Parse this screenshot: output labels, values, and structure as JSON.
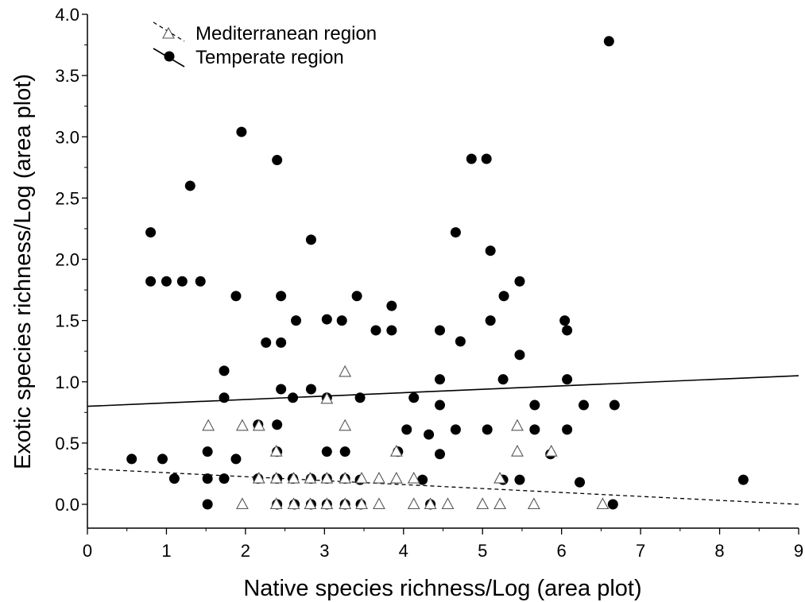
{
  "chart_data": {
    "type": "scatter",
    "title": "",
    "xlabel": "Native species richness/Log (area plot)",
    "ylabel": "Exotic species richness/Log (area plot)",
    "xlim": [
      0,
      9
    ],
    "ylim": [
      -0.2,
      4.0
    ],
    "xticks": [
      "0",
      "1",
      "2",
      "3",
      "4",
      "5",
      "6",
      "7",
      "8",
      "9"
    ],
    "yticks": [
      "0.0",
      "0.5",
      "1.0",
      "1.5",
      "2.0",
      "2.5",
      "3.0",
      "3.5",
      "4.0"
    ],
    "grid": false,
    "legend_position": "top-left",
    "series": [
      {
        "name": "Mediterranean region",
        "marker": "open-triangle",
        "color": "#555555",
        "trend": {
          "style": "dashed",
          "x": [
            0,
            9
          ],
          "y": [
            0.29,
            0.0
          ]
        },
        "points": [
          [
            1.53,
            0.64
          ],
          [
            1.96,
            0.64
          ],
          [
            2.17,
            0.64
          ],
          [
            2.39,
            0.43
          ],
          [
            3.03,
            0.86
          ],
          [
            3.26,
            1.08
          ],
          [
            3.26,
            0.64
          ],
          [
            3.91,
            0.43
          ],
          [
            5.44,
            0.64
          ],
          [
            5.44,
            0.43
          ],
          [
            5.87,
            0.43
          ],
          [
            2.17,
            0.21
          ],
          [
            2.39,
            0.21
          ],
          [
            2.61,
            0.21
          ],
          [
            2.82,
            0.21
          ],
          [
            3.03,
            0.21
          ],
          [
            3.26,
            0.21
          ],
          [
            3.47,
            0.21
          ],
          [
            3.69,
            0.21
          ],
          [
            3.91,
            0.21
          ],
          [
            4.13,
            0.21
          ],
          [
            5.22,
            0.21
          ],
          [
            1.96,
            0.0
          ],
          [
            2.39,
            0.0
          ],
          [
            2.61,
            0.0
          ],
          [
            2.82,
            0.0
          ],
          [
            3.03,
            0.0
          ],
          [
            3.26,
            0.0
          ],
          [
            3.47,
            0.0
          ],
          [
            3.69,
            0.0
          ],
          [
            4.13,
            0.0
          ],
          [
            4.34,
            0.0
          ],
          [
            4.56,
            0.0
          ],
          [
            5.0,
            0.0
          ],
          [
            5.22,
            0.0
          ],
          [
            5.65,
            0.0
          ],
          [
            6.52,
            0.0
          ]
        ]
      },
      {
        "name": "Temperate region",
        "marker": "filled-circle",
        "color": "#000000",
        "trend": {
          "style": "solid",
          "x": [
            0,
            9
          ],
          "y": [
            0.8,
            1.05
          ]
        },
        "points": [
          [
            0.56,
            0.37
          ],
          [
            0.8,
            2.22
          ],
          [
            0.8,
            1.82
          ],
          [
            0.95,
            0.37
          ],
          [
            1.0,
            1.82
          ],
          [
            1.1,
            0.21
          ],
          [
            1.2,
            1.82
          ],
          [
            1.3,
            2.6
          ],
          [
            1.43,
            1.82
          ],
          [
            1.52,
            0.43
          ],
          [
            1.52,
            0.21
          ],
          [
            1.52,
            0.0
          ],
          [
            1.73,
            1.09
          ],
          [
            1.73,
            0.87
          ],
          [
            1.73,
            0.21
          ],
          [
            1.88,
            1.7
          ],
          [
            1.88,
            0.37
          ],
          [
            1.95,
            3.04
          ],
          [
            2.16,
            0.65
          ],
          [
            2.16,
            0.21
          ],
          [
            2.26,
            1.32
          ],
          [
            2.4,
            2.81
          ],
          [
            2.4,
            0.65
          ],
          [
            2.4,
            0.43
          ],
          [
            2.4,
            0.21
          ],
          [
            2.4,
            0.0
          ],
          [
            2.45,
            1.7
          ],
          [
            2.45,
            1.32
          ],
          [
            2.45,
            0.94
          ],
          [
            2.6,
            0.21
          ],
          [
            2.6,
            0.87
          ],
          [
            2.62,
            0.0
          ],
          [
            2.64,
            1.5
          ],
          [
            2.83,
            2.16
          ],
          [
            2.83,
            0.94
          ],
          [
            2.83,
            0.21
          ],
          [
            2.83,
            0.0
          ],
          [
            3.03,
            1.51
          ],
          [
            3.03,
            0.87
          ],
          [
            3.03,
            0.43
          ],
          [
            3.03,
            0.21
          ],
          [
            3.03,
            0.0
          ],
          [
            3.22,
            1.5
          ],
          [
            3.26,
            0.43
          ],
          [
            3.26,
            0.21
          ],
          [
            3.26,
            0.0
          ],
          [
            3.41,
            1.7
          ],
          [
            3.45,
            0.87
          ],
          [
            3.45,
            0.2
          ],
          [
            3.46,
            0.0
          ],
          [
            3.65,
            1.42
          ],
          [
            3.85,
            1.62
          ],
          [
            3.85,
            1.42
          ],
          [
            3.93,
            0.43
          ],
          [
            4.04,
            0.61
          ],
          [
            4.13,
            0.87
          ],
          [
            4.24,
            0.2
          ],
          [
            4.32,
            0.57
          ],
          [
            4.34,
            0.0
          ],
          [
            4.46,
            1.42
          ],
          [
            4.46,
            1.02
          ],
          [
            4.46,
            0.81
          ],
          [
            4.46,
            0.41
          ],
          [
            4.66,
            2.22
          ],
          [
            4.66,
            0.61
          ],
          [
            4.72,
            1.33
          ],
          [
            4.86,
            2.82
          ],
          [
            5.05,
            2.82
          ],
          [
            5.06,
            0.61
          ],
          [
            5.1,
            2.07
          ],
          [
            5.1,
            1.5
          ],
          [
            5.27,
            1.7
          ],
          [
            5.26,
            1.02
          ],
          [
            5.26,
            0.2
          ],
          [
            5.47,
            1.82
          ],
          [
            5.47,
            1.22
          ],
          [
            5.47,
            0.2
          ],
          [
            5.66,
            0.81
          ],
          [
            5.66,
            0.61
          ],
          [
            5.86,
            0.41
          ],
          [
            6.04,
            1.5
          ],
          [
            6.07,
            1.42
          ],
          [
            6.07,
            1.02
          ],
          [
            6.07,
            0.61
          ],
          [
            6.23,
            0.18
          ],
          [
            6.28,
            0.81
          ],
          [
            6.6,
            3.78
          ],
          [
            6.67,
            0.81
          ],
          [
            6.65,
            0.0
          ],
          [
            8.3,
            0.2
          ]
        ]
      }
    ]
  }
}
